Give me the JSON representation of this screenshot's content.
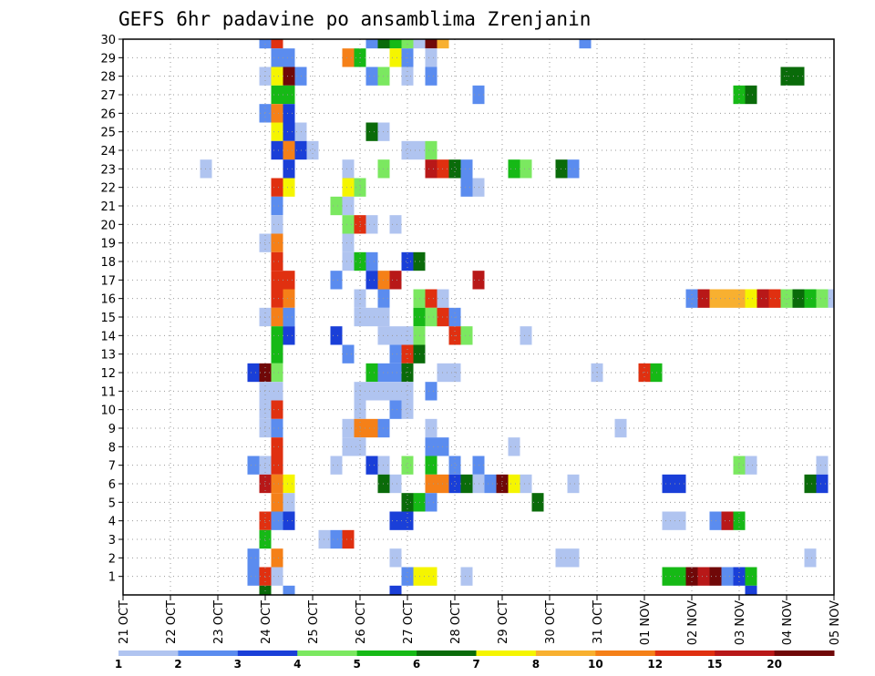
{
  "chart_data": {
    "type": "heatmap",
    "title": "GEFS 6hr padavine po ansamblima Zrenjanin",
    "xlabel": "",
    "ylabel": "",
    "x_ticks": [
      "21 OCT",
      "22 OCT",
      "23 OCT",
      "24 OCT",
      "25 OCT",
      "26 OCT",
      "27 OCT",
      "28 OCT",
      "29 OCT",
      "30 OCT",
      "31 OCT",
      "01 NOV",
      "02 NOV",
      "03 NOV",
      "04 NOV",
      "05 NOV"
    ],
    "x_unit": "6-hour steps from 21 OCT 00Z",
    "x_range": [
      0,
      60
    ],
    "y_ticks": [
      1,
      2,
      3,
      4,
      5,
      6,
      7,
      8,
      9,
      10,
      11,
      12,
      13,
      14,
      15,
      16,
      17,
      18,
      19,
      20,
      21,
      22,
      23,
      24,
      25,
      26,
      27,
      28,
      29,
      30
    ],
    "y_range": [
      0,
      30
    ],
    "grid": true,
    "colorbar": {
      "labels": [
        "1",
        "2",
        "3",
        "4",
        "5",
        "6",
        "7",
        "8",
        "10",
        "12",
        "15",
        "20"
      ],
      "colors": [
        "#b0c4f0",
        "#5b8cef",
        "#1a3fd8",
        "#7be860",
        "#16b916",
        "#0a6b0a",
        "#f5f500",
        "#f8b030",
        "#f58018",
        "#e03010",
        "#b81818",
        "#700808"
      ]
    },
    "colors": {
      "axis": "#000000",
      "grid": "#999999",
      "c1": "#b0c4f0",
      "c2": "#5b8cef",
      "c3": "#1a3fd8",
      "c4": "#7be860",
      "c5": "#16b916",
      "c6": "#0a6b0a",
      "c7": "#f5f500",
      "c8": "#f8b030",
      "c10": "#f58018",
      "c12": "#e03010",
      "c15": "#b81818",
      "c20": "#700808"
    },
    "cells_note": "each cell: [member, 6h step index, color class 0..11]",
    "cells": [
      [
        30,
        12,
        1
      ],
      [
        30,
        13,
        9
      ],
      [
        30,
        21,
        1
      ],
      [
        30,
        22,
        5
      ],
      [
        30,
        23,
        4
      ],
      [
        30,
        24,
        3
      ],
      [
        30,
        25,
        0
      ],
      [
        30,
        26,
        11
      ],
      [
        30,
        27,
        7
      ],
      [
        30,
        39,
        1
      ],
      [
        29,
        13,
        1
      ],
      [
        29,
        14,
        1
      ],
      [
        29,
        19,
        8
      ],
      [
        29,
        20,
        4
      ],
      [
        29,
        23,
        6
      ],
      [
        29,
        24,
        1
      ],
      [
        29,
        26,
        0
      ],
      [
        28,
        12,
        0
      ],
      [
        28,
        13,
        6
      ],
      [
        28,
        14,
        11
      ],
      [
        28,
        15,
        1
      ],
      [
        28,
        21,
        1
      ],
      [
        28,
        22,
        3
      ],
      [
        28,
        24,
        0
      ],
      [
        28,
        26,
        1
      ],
      [
        28,
        56,
        5
      ],
      [
        28,
        57,
        5
      ],
      [
        27,
        13,
        4
      ],
      [
        27,
        14,
        4
      ],
      [
        27,
        30,
        1
      ],
      [
        27,
        52,
        4
      ],
      [
        27,
        53,
        5
      ],
      [
        26,
        12,
        1
      ],
      [
        26,
        13,
        8
      ],
      [
        26,
        14,
        2
      ],
      [
        25,
        13,
        6
      ],
      [
        25,
        14,
        2
      ],
      [
        25,
        15,
        0
      ],
      [
        25,
        21,
        5
      ],
      [
        25,
        22,
        0
      ],
      [
        24,
        13,
        2
      ],
      [
        24,
        14,
        8
      ],
      [
        24,
        15,
        2
      ],
      [
        24,
        16,
        0
      ],
      [
        24,
        24,
        0
      ],
      [
        24,
        25,
        0
      ],
      [
        24,
        26,
        3
      ],
      [
        23,
        7,
        0
      ],
      [
        23,
        14,
        2
      ],
      [
        23,
        19,
        0
      ],
      [
        23,
        22,
        3
      ],
      [
        23,
        26,
        10
      ],
      [
        23,
        27,
        9
      ],
      [
        23,
        28,
        5
      ],
      [
        23,
        29,
        1
      ],
      [
        23,
        33,
        4
      ],
      [
        23,
        34,
        3
      ],
      [
        23,
        37,
        5
      ],
      [
        23,
        38,
        1
      ],
      [
        22,
        13,
        9
      ],
      [
        22,
        14,
        6
      ],
      [
        22,
        19,
        6
      ],
      [
        22,
        20,
        3
      ],
      [
        22,
        29,
        1
      ],
      [
        22,
        30,
        0
      ],
      [
        21,
        13,
        1
      ],
      [
        21,
        18,
        3
      ],
      [
        21,
        19,
        0
      ],
      [
        20,
        13,
        0
      ],
      [
        20,
        19,
        3
      ],
      [
        20,
        20,
        9
      ],
      [
        20,
        21,
        0
      ],
      [
        20,
        23,
        0
      ],
      [
        19,
        12,
        0
      ],
      [
        19,
        13,
        8
      ],
      [
        19,
        19,
        0
      ],
      [
        18,
        13,
        9
      ],
      [
        18,
        19,
        0
      ],
      [
        18,
        20,
        4
      ],
      [
        18,
        21,
        1
      ],
      [
        18,
        24,
        2
      ],
      [
        18,
        25,
        5
      ],
      [
        17,
        13,
        9
      ],
      [
        17,
        14,
        9
      ],
      [
        17,
        18,
        1
      ],
      [
        17,
        21,
        2
      ],
      [
        17,
        22,
        8
      ],
      [
        17,
        23,
        10
      ],
      [
        17,
        30,
        10
      ],
      [
        16,
        13,
        9
      ],
      [
        16,
        14,
        8
      ],
      [
        16,
        20,
        0
      ],
      [
        16,
        22,
        1
      ],
      [
        16,
        25,
        3
      ],
      [
        16,
        26,
        9
      ],
      [
        16,
        27,
        0
      ],
      [
        16,
        48,
        1
      ],
      [
        16,
        49,
        10
      ],
      [
        16,
        50,
        7
      ],
      [
        16,
        51,
        7
      ],
      [
        16,
        52,
        7
      ],
      [
        16,
        53,
        6
      ],
      [
        16,
        54,
        10
      ],
      [
        16,
        55,
        9
      ],
      [
        16,
        56,
        3
      ],
      [
        16,
        57,
        5
      ],
      [
        16,
        58,
        4
      ],
      [
        16,
        59,
        3
      ],
      [
        16,
        60,
        0
      ],
      [
        15,
        12,
        0
      ],
      [
        15,
        13,
        8
      ],
      [
        15,
        14,
        1
      ],
      [
        15,
        20,
        0
      ],
      [
        15,
        21,
        0
      ],
      [
        15,
        22,
        0
      ],
      [
        15,
        25,
        4
      ],
      [
        15,
        26,
        3
      ],
      [
        15,
        27,
        9
      ],
      [
        15,
        28,
        1
      ],
      [
        14,
        13,
        4
      ],
      [
        14,
        14,
        2
      ],
      [
        14,
        18,
        2
      ],
      [
        14,
        22,
        0
      ],
      [
        14,
        23,
        0
      ],
      [
        14,
        24,
        0
      ],
      [
        14,
        25,
        3
      ],
      [
        14,
        28,
        9
      ],
      [
        14,
        29,
        3
      ],
      [
        14,
        34,
        0
      ],
      [
        13,
        13,
        4
      ],
      [
        13,
        19,
        1
      ],
      [
        13,
        23,
        1
      ],
      [
        13,
        24,
        9
      ],
      [
        13,
        25,
        5
      ],
      [
        12,
        11,
        2
      ],
      [
        12,
        12,
        11
      ],
      [
        12,
        13,
        3
      ],
      [
        12,
        21,
        4
      ],
      [
        12,
        22,
        1
      ],
      [
        12,
        23,
        1
      ],
      [
        12,
        24,
        5
      ],
      [
        12,
        27,
        0
      ],
      [
        12,
        28,
        0
      ],
      [
        12,
        40,
        0
      ],
      [
        12,
        44,
        9
      ],
      [
        12,
        45,
        4
      ],
      [
        11,
        12,
        0
      ],
      [
        11,
        13,
        0
      ],
      [
        11,
        20,
        0
      ],
      [
        11,
        21,
        0
      ],
      [
        11,
        22,
        0
      ],
      [
        11,
        23,
        0
      ],
      [
        11,
        24,
        0
      ],
      [
        11,
        26,
        1
      ],
      [
        10,
        12,
        0
      ],
      [
        10,
        13,
        9
      ],
      [
        10,
        20,
        0
      ],
      [
        10,
        23,
        1
      ],
      [
        10,
        24,
        0
      ],
      [
        9,
        12,
        0
      ],
      [
        9,
        13,
        1
      ],
      [
        9,
        19,
        0
      ],
      [
        9,
        20,
        8
      ],
      [
        9,
        21,
        8
      ],
      [
        9,
        22,
        1
      ],
      [
        9,
        26,
        0
      ],
      [
        9,
        42,
        0
      ],
      [
        8,
        13,
        9
      ],
      [
        8,
        19,
        0
      ],
      [
        8,
        20,
        0
      ],
      [
        8,
        26,
        1
      ],
      [
        8,
        27,
        1
      ],
      [
        8,
        33,
        0
      ],
      [
        7,
        11,
        1
      ],
      [
        7,
        12,
        0
      ],
      [
        7,
        13,
        9
      ],
      [
        7,
        18,
        0
      ],
      [
        7,
        21,
        2
      ],
      [
        7,
        22,
        0
      ],
      [
        7,
        24,
        3
      ],
      [
        7,
        26,
        4
      ],
      [
        7,
        28,
        1
      ],
      [
        7,
        30,
        1
      ],
      [
        7,
        52,
        3
      ],
      [
        7,
        53,
        0
      ],
      [
        7,
        59,
        0
      ],
      [
        6,
        12,
        10
      ],
      [
        6,
        13,
        8
      ],
      [
        6,
        14,
        6
      ],
      [
        6,
        22,
        5
      ],
      [
        6,
        23,
        0
      ],
      [
        6,
        26,
        8
      ],
      [
        6,
        27,
        8
      ],
      [
        6,
        28,
        2
      ],
      [
        6,
        29,
        5
      ],
      [
        6,
        30,
        0
      ],
      [
        6,
        31,
        1
      ],
      [
        6,
        32,
        11
      ],
      [
        6,
        33,
        6
      ],
      [
        6,
        34,
        0
      ],
      [
        6,
        38,
        0
      ],
      [
        6,
        46,
        2
      ],
      [
        6,
        47,
        2
      ],
      [
        6,
        58,
        5
      ],
      [
        6,
        59,
        2
      ],
      [
        5,
        13,
        8
      ],
      [
        5,
        14,
        0
      ],
      [
        5,
        24,
        5
      ],
      [
        5,
        25,
        4
      ],
      [
        5,
        26,
        1
      ],
      [
        5,
        35,
        5
      ],
      [
        4,
        12,
        9
      ],
      [
        4,
        13,
        1
      ],
      [
        4,
        14,
        2
      ],
      [
        4,
        23,
        2
      ],
      [
        4,
        24,
        2
      ],
      [
        4,
        46,
        0
      ],
      [
        4,
        47,
        0
      ],
      [
        4,
        50,
        1
      ],
      [
        4,
        51,
        10
      ],
      [
        4,
        52,
        4
      ],
      [
        3,
        12,
        4
      ],
      [
        3,
        17,
        0
      ],
      [
        3,
        18,
        1
      ],
      [
        3,
        19,
        9
      ],
      [
        2,
        11,
        1
      ],
      [
        2,
        13,
        8
      ],
      [
        2,
        23,
        0
      ],
      [
        2,
        37,
        0
      ],
      [
        2,
        38,
        0
      ],
      [
        2,
        58,
        0
      ],
      [
        1,
        11,
        1
      ],
      [
        1,
        12,
        9
      ],
      [
        1,
        13,
        0
      ],
      [
        1,
        24,
        1
      ],
      [
        1,
        25,
        6
      ],
      [
        1,
        26,
        6
      ],
      [
        1,
        29,
        0
      ],
      [
        1,
        46,
        4
      ],
      [
        1,
        47,
        4
      ],
      [
        1,
        48,
        11
      ],
      [
        1,
        49,
        10
      ],
      [
        1,
        50,
        11
      ],
      [
        1,
        51,
        1
      ],
      [
        1,
        52,
        2
      ],
      [
        1,
        53,
        4
      ],
      [
        0,
        12,
        5
      ],
      [
        0,
        14,
        1
      ],
      [
        0,
        23,
        2
      ],
      [
        0,
        53,
        2
      ]
    ]
  }
}
